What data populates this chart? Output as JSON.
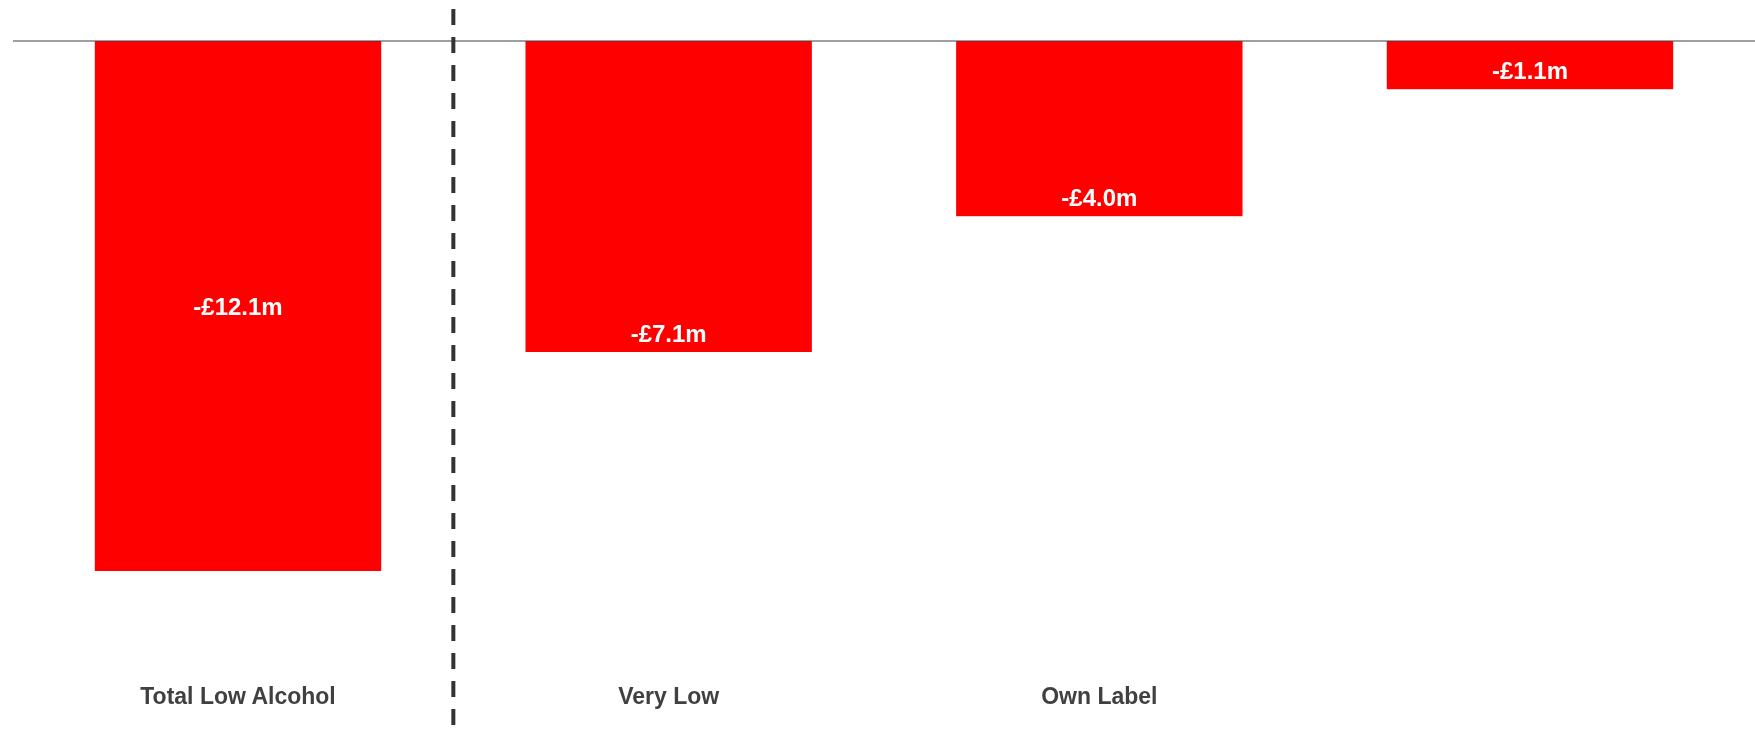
{
  "chart_data": {
    "type": "bar",
    "categories": [
      "Total Low Alcohol",
      "Very Low",
      "Own Label",
      null
    ],
    "values": [
      -12.1,
      -7.1,
      -4.0,
      -1.1
    ],
    "value_labels": [
      "-£12.1m",
      "-£7.1m",
      "-£4.0m",
      "-£1.1m"
    ],
    "color": "#ff0000"
  }
}
